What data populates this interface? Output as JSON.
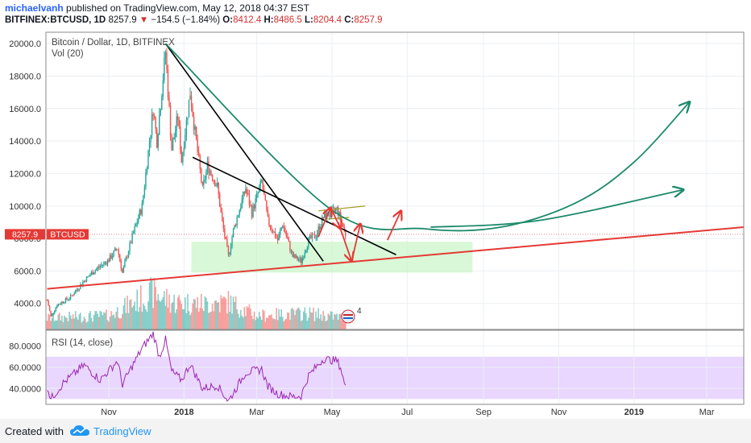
{
  "header": {
    "author": "michaelvanh",
    "published_text": "published on TradingView.com, May 12, 2018 04:37 EST",
    "symbol": "BITFINEX:BTCUSD, 1D",
    "last_price": "8257.9",
    "change_arrow": "▼",
    "change": "−154.5 (−1.84%)",
    "open_label": "O:",
    "open": "8412.4",
    "high_label": "H:",
    "high": "8486.5",
    "low_label": "L:",
    "low": "8204.4",
    "close_label": "C:",
    "close": "8257.9"
  },
  "chart_legend": {
    "title": "Bitcoin / Dollar, 1D, BITFINEX",
    "volume": "Vol (20)",
    "rsi": "RSI (14, close)"
  },
  "price_tag": {
    "value": "8257.9",
    "symbol": "BTCUSD"
  },
  "event_badge": "4",
  "footer": {
    "created_with": "Created with",
    "brand": "TradingView"
  },
  "colors": {
    "up": "#26a69a",
    "down": "#ef5350",
    "trend_black": "#000000",
    "support_red": "#e53935",
    "curve_green": "#1b8a6b",
    "arrow_red": "#e53935",
    "zone_fill": "#c8f5c8",
    "rsi_band": "#e9d7ff",
    "rsi_line": "#9c27b0",
    "price_tag_bg": "#e53935"
  },
  "chart_data": {
    "type": "candlestick",
    "price_axis": {
      "ticks": [
        4000,
        6000,
        8000,
        10000,
        12000,
        14000,
        16000,
        18000,
        20000
      ],
      "tick_labels": [
        "4000.0",
        "6000.0",
        "8000.0",
        "10000.0",
        "12000.0",
        "14000.0",
        "16000.0",
        "18000.0",
        "20000.0"
      ],
      "ylim": [
        2400,
        20700
      ]
    },
    "rsi_axis": {
      "ticks": [
        40,
        60,
        80
      ],
      "tick_labels": [
        "40.0000",
        "60.0000",
        "80.0000"
      ],
      "ylim": [
        25,
        95
      ],
      "band": [
        30,
        70
      ]
    },
    "time_axis": {
      "ticks": [
        {
          "date": "2017-11-01",
          "label": "Nov"
        },
        {
          "date": "2018-01-01",
          "label": "2018"
        },
        {
          "date": "2018-03-01",
          "label": "Mar"
        },
        {
          "date": "2018-05-01",
          "label": "May"
        },
        {
          "date": "2018-07-01",
          "label": "Jul"
        },
        {
          "date": "2018-09-01",
          "label": "Sep"
        },
        {
          "date": "2018-11-01",
          "label": "Nov"
        },
        {
          "date": "2019-01-01",
          "label": "2019"
        },
        {
          "date": "2019-03-01",
          "label": "Mar"
        }
      ],
      "xlim": [
        "2017-09-11",
        "2019-03-31"
      ]
    },
    "price_keypoints": [
      [
        "2017-09-12",
        4200
      ],
      [
        "2017-09-15",
        3200
      ],
      [
        "2017-09-20",
        3900
      ],
      [
        "2017-10-01",
        4400
      ],
      [
        "2017-10-12",
        5400
      ],
      [
        "2017-10-20",
        6000
      ],
      [
        "2017-11-01",
        6700
      ],
      [
        "2017-11-08",
        7400
      ],
      [
        "2017-11-12",
        5900
      ],
      [
        "2017-11-20",
        8100
      ],
      [
        "2017-11-28",
        10000
      ],
      [
        "2017-12-07",
        16000
      ],
      [
        "2017-12-10",
        14000
      ],
      [
        "2017-12-17",
        19500
      ],
      [
        "2017-12-22",
        13500
      ],
      [
        "2017-12-27",
        15500
      ],
      [
        "2017-12-30",
        12800
      ],
      [
        "2018-01-06",
        17000
      ],
      [
        "2018-01-10",
        14500
      ],
      [
        "2018-01-16",
        11000
      ],
      [
        "2018-01-20",
        12500
      ],
      [
        "2018-01-28",
        11200
      ],
      [
        "2018-02-01",
        9000
      ],
      [
        "2018-02-06",
        6900
      ],
      [
        "2018-02-10",
        8500
      ],
      [
        "2018-02-20",
        11100
      ],
      [
        "2018-02-25",
        9600
      ],
      [
        "2018-03-05",
        11500
      ],
      [
        "2018-03-10",
        9100
      ],
      [
        "2018-03-18",
        7900
      ],
      [
        "2018-03-22",
        8900
      ],
      [
        "2018-03-30",
        6900
      ],
      [
        "2018-04-06",
        6600
      ],
      [
        "2018-04-12",
        7900
      ],
      [
        "2018-04-18",
        8200
      ],
      [
        "2018-04-24",
        9300
      ],
      [
        "2018-05-05",
        9800
      ],
      [
        "2018-05-08",
        9200
      ],
      [
        "2018-05-12",
        8258
      ]
    ],
    "volume_keypoints": [
      [
        "2017-09-12",
        0.25
      ],
      [
        "2017-11-01",
        0.3
      ],
      [
        "2017-12-07",
        0.8
      ],
      [
        "2017-12-22",
        0.6
      ],
      [
        "2018-01-16",
        0.55
      ],
      [
        "2018-02-06",
        0.6
      ],
      [
        "2018-03-01",
        0.3
      ],
      [
        "2018-04-12",
        0.35
      ],
      [
        "2018-05-12",
        0.25
      ]
    ],
    "rsi_keypoints": [
      [
        "2017-09-12",
        42
      ],
      [
        "2017-09-15",
        30
      ],
      [
        "2017-09-25",
        45
      ],
      [
        "2017-10-12",
        62
      ],
      [
        "2017-10-25",
        48
      ],
      [
        "2017-11-08",
        66
      ],
      [
        "2017-11-12",
        44
      ],
      [
        "2017-11-28",
        78
      ],
      [
        "2017-12-07",
        92
      ],
      [
        "2017-12-12",
        70
      ],
      [
        "2017-12-17",
        86
      ],
      [
        "2017-12-22",
        56
      ],
      [
        "2017-12-30",
        48
      ],
      [
        "2018-01-06",
        63
      ],
      [
        "2018-01-16",
        40
      ],
      [
        "2018-01-28",
        43
      ],
      [
        "2018-02-06",
        28
      ],
      [
        "2018-02-20",
        55
      ],
      [
        "2018-03-05",
        58
      ],
      [
        "2018-03-10",
        42
      ],
      [
        "2018-03-18",
        35
      ],
      [
        "2018-03-30",
        32
      ],
      [
        "2018-04-06",
        33
      ],
      [
        "2018-04-12",
        52
      ],
      [
        "2018-04-24",
        68
      ],
      [
        "2018-05-05",
        66
      ],
      [
        "2018-05-08",
        60
      ],
      [
        "2018-05-12",
        40
      ]
    ],
    "drawings": {
      "support_line": [
        [
          "2017-09-12",
          4900
        ],
        [
          "2019-03-31",
          8700
        ]
      ],
      "trendline_steep": [
        [
          "2017-12-17",
          20000
        ],
        [
          "2018-04-24",
          6600
        ]
      ],
      "trendline_shallow": [
        [
          "2018-01-08",
          13000
        ],
        [
          "2018-06-22",
          7000
        ]
      ],
      "green_curve": [
        [
          "2017-12-17",
          20000
        ],
        [
          "2018-04-30",
          9800
        ],
        [
          "2018-07-15",
          8600
        ],
        [
          "2018-09-15",
          8700
        ],
        [
          "2018-11-15",
          10200
        ],
        [
          "2019-01-01",
          12700
        ],
        [
          "2019-02-15",
          16400
        ]
      ],
      "green_arrow_2": [
        [
          "2018-07-20",
          8700
        ],
        [
          "2018-10-15",
          9100
        ],
        [
          "2019-02-10",
          11000
        ]
      ],
      "olive_lines": [
        [
          [
            "2018-04-20",
            9700
          ],
          [
            "2018-05-28",
            10000
          ]
        ],
        [
          [
            "2018-04-28",
            9200
          ],
          [
            "2018-05-15",
            9300
          ]
        ]
      ],
      "red_arrows": [
        [
          [
            "2018-04-20",
            8100
          ],
          [
            "2018-04-30",
            9900
          ]
        ],
        [
          [
            "2018-04-30",
            9900
          ],
          [
            "2018-05-08",
            8600
          ]
        ],
        [
          [
            "2018-05-06",
            9000
          ],
          [
            "2018-05-17",
            6600
          ]
        ],
        [
          [
            "2018-05-17",
            6600
          ],
          [
            "2018-05-24",
            8900
          ]
        ],
        [
          [
            "2018-06-15",
            7900
          ],
          [
            "2018-06-26",
            9700
          ]
        ]
      ],
      "green_zone": {
        "from": [
          "2018-01-07",
          7800
        ],
        "to": [
          "2018-08-23",
          5900
        ]
      }
    }
  }
}
